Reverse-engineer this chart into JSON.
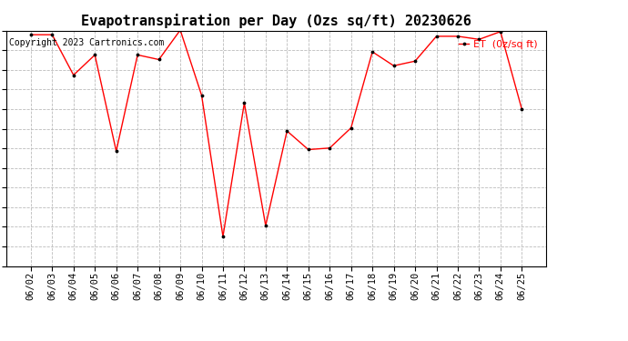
{
  "title": "Evapotranspiration per Day (Ozs sq/ft) 20230626",
  "copyright_text": "Copyright 2023 Cartronics.com",
  "legend_label": "ET  (0z/sq ft)",
  "dates": [
    "06/02",
    "06/03",
    "06/04",
    "06/05",
    "06/06",
    "06/07",
    "06/08",
    "06/09",
    "06/10",
    "06/11",
    "06/12",
    "06/13",
    "06/14",
    "06/15",
    "06/16",
    "06/17",
    "06/18",
    "06/19",
    "06/20",
    "06/21",
    "06/22",
    "06/23",
    "06/24",
    "06/25"
  ],
  "values": [
    14.9,
    14.9,
    12.3,
    13.6,
    7.4,
    13.6,
    13.3,
    15.2,
    11.0,
    1.9,
    10.5,
    2.6,
    8.7,
    7.5,
    7.6,
    8.9,
    13.8,
    12.9,
    13.2,
    14.8,
    14.8,
    14.6,
    15.1,
    10.1
  ],
  "yticks": [
    0.0,
    1.263,
    2.527,
    3.79,
    5.053,
    6.317,
    7.58,
    8.843,
    10.107,
    11.37,
    12.633,
    13.897,
    15.16
  ],
  "ylim": [
    0.0,
    15.16
  ],
  "line_color": "red",
  "marker_color": "black",
  "background_color": "white",
  "grid_color": "#bbbbbb",
  "title_fontsize": 11,
  "copyright_fontsize": 7,
  "legend_color": "red",
  "tick_label_fontsize": 7.5,
  "ytick_label_fontsize": 8
}
